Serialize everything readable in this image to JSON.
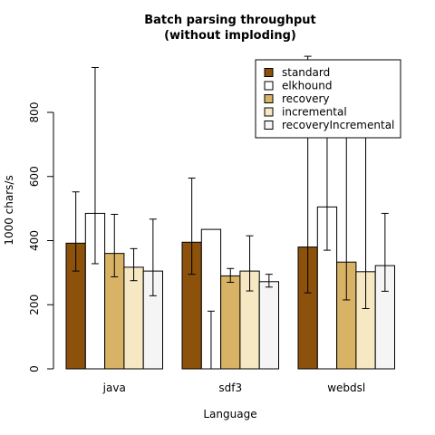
{
  "chart_data": {
    "type": "bar",
    "title": "Batch parsing throughput",
    "subtitle": "(without imploding)",
    "xlabel": "Language",
    "ylabel": "1000 chars/s",
    "ylim": [
      0,
      1000
    ],
    "yticks": [
      0,
      200,
      400,
      600,
      800
    ],
    "categories": [
      "java",
      "sdf3",
      "webdsl"
    ],
    "legend_position": "top-right",
    "series": [
      {
        "name": "standard",
        "color": "#8c510a",
        "values": [
          392,
          395,
          380
        ],
        "err_low": [
          305,
          295,
          237
        ],
        "err_high": [
          552,
          595,
          975
        ]
      },
      {
        "name": "elkhound",
        "color": "#ffffff",
        "values": [
          485,
          435,
          505
        ],
        "err_low": [
          328,
          0,
          370
        ],
        "err_high": [
          940,
          180,
          810
        ]
      },
      {
        "name": "recovery",
        "color": "#d8b365",
        "values": [
          360,
          290,
          333
        ],
        "err_low": [
          287,
          270,
          215
        ],
        "err_high": [
          482,
          313,
          757
        ]
      },
      {
        "name": "incremental",
        "color": "#f6e8c3",
        "values": [
          317,
          305,
          303
        ],
        "err_low": [
          275,
          243,
          188
        ],
        "err_high": [
          375,
          415,
          833
        ]
      },
      {
        "name": "recoveryIncremental",
        "color": "#f5f5f5",
        "values": [
          305,
          272,
          322
        ],
        "err_low": [
          228,
          255,
          242
        ],
        "err_high": [
          467,
          295,
          485
        ]
      }
    ]
  }
}
